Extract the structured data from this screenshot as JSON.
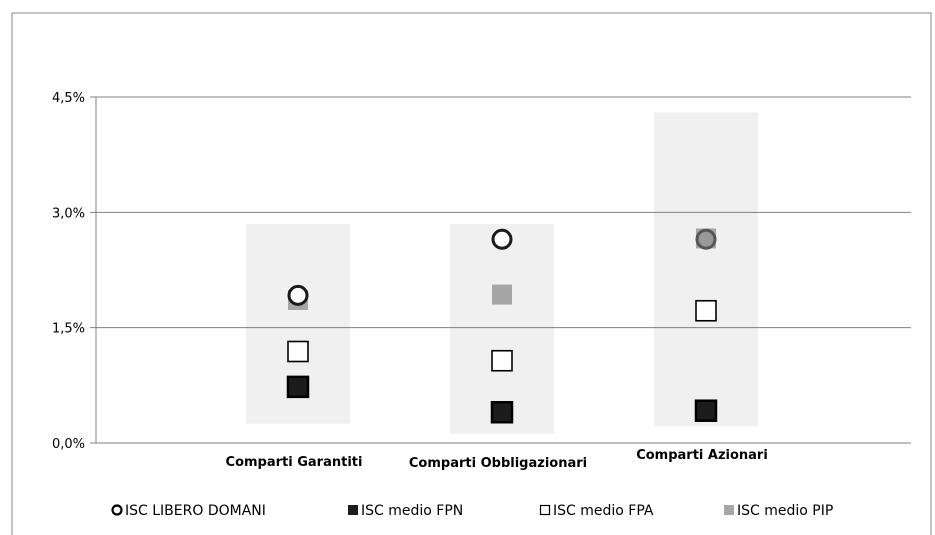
{
  "chart_data": {
    "type": "scatter",
    "categories": [
      "Comparti Garantiti",
      "Comparti Obbligazionari",
      "Comparti Azionari"
    ],
    "ylim": [
      0,
      4.5
    ],
    "y_ticks": [
      "0,0%",
      "1,5%",
      "3,0%",
      "4,5%"
    ],
    "y_tick_values": [
      0,
      1.5,
      3.0,
      4.5
    ],
    "grid": true,
    "legend_position": "bottom",
    "ranges": [
      {
        "min": 0.25,
        "max": 2.85
      },
      {
        "min": 0.12,
        "max": 2.85
      },
      {
        "min": 0.22,
        "max": 4.3
      }
    ],
    "series": [
      {
        "name": "ISC LIBERO DOMANI",
        "marker": "circle-open",
        "values": [
          1.92,
          2.65,
          2.65
        ]
      },
      {
        "name": "ISC medio FPN",
        "marker": "square-black",
        "values": [
          0.73,
          0.4,
          0.42
        ]
      },
      {
        "name": "ISC medio FPA",
        "marker": "square-open",
        "values": [
          1.19,
          1.07,
          1.72
        ]
      },
      {
        "name": "ISC medio PIP",
        "marker": "square-gray",
        "values": [
          1.86,
          1.93,
          2.66
        ]
      }
    ],
    "colors": {
      "range_band": "#f0f0f0",
      "grid": "#808080",
      "black": "#1a1a1a",
      "gray": "#a6a6a6",
      "gray_circle_fill": "#999999"
    }
  }
}
